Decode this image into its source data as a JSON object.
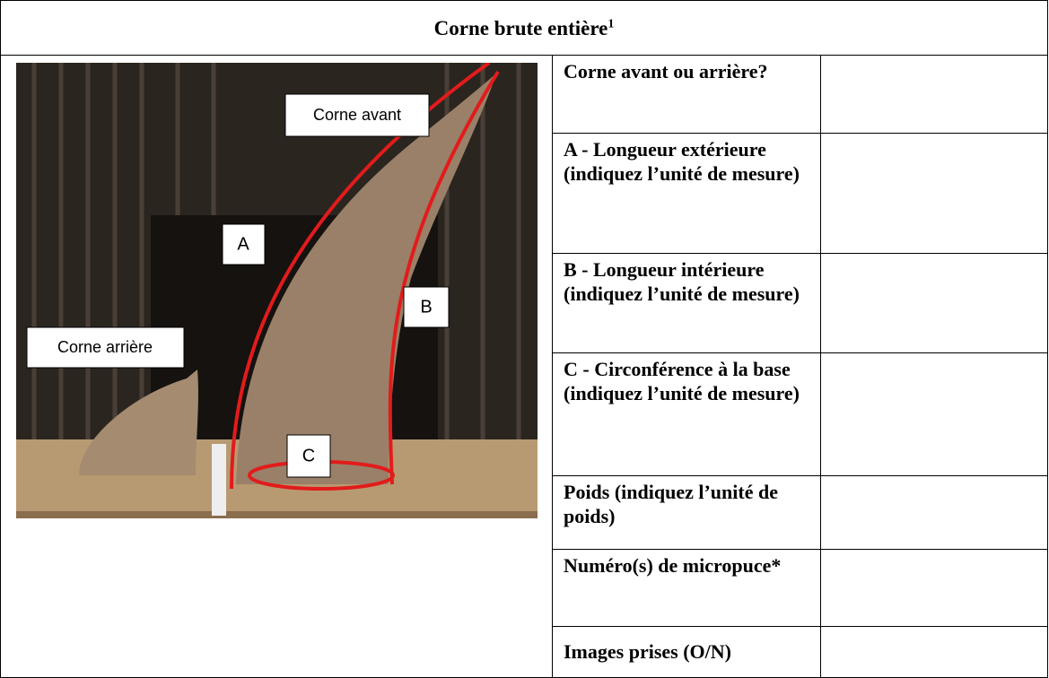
{
  "header": {
    "title": "Corne brute entière",
    "footnote": "1"
  },
  "photo": {
    "labels": [
      "Corne avant",
      "A",
      "B",
      "C",
      "Corne arrière"
    ]
  },
  "table": {
    "rows": [
      [
        "Corne avant ou arrière?",
        ""
      ],
      [
        "A - Longueur extérieure (indiquez l’unité de mesure)",
        ""
      ],
      [
        "B - Longueur intérieure (indiquez l’unité de mesure)",
        ""
      ],
      [
        "C - Circonférence à la base (indiquez l’unité de mesure)",
        ""
      ],
      [
        "Poids (indiquez l’unité de poids)",
        ""
      ],
      [
        "Numéro(s) de micropuce*",
        ""
      ],
      [
        "Images prises (O/N)",
        ""
      ]
    ]
  }
}
